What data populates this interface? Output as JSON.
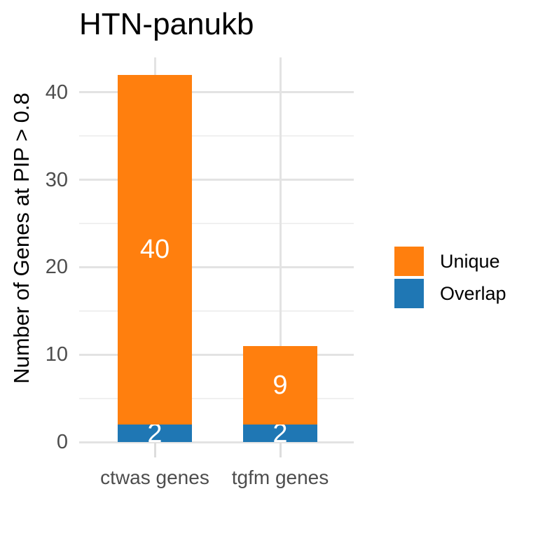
{
  "title": "HTN-panukb",
  "y_axis": {
    "label": "Number of Genes at PIP > 0.8",
    "tick_labels": [
      "0",
      "10",
      "20",
      "30",
      "40"
    ]
  },
  "x_axis": {
    "tick_labels": [
      "ctwas genes",
      "tgfm genes"
    ]
  },
  "legend": {
    "items": [
      {
        "label": "Unique",
        "color": "#ff7f0e"
      },
      {
        "label": "Overlap",
        "color": "#1f77b4"
      }
    ]
  },
  "chart_data": {
    "type": "bar",
    "stacked": true,
    "title": "HTN-panukb",
    "xlabel": "",
    "ylabel": "Number of Genes at PIP > 0.8",
    "categories": [
      "ctwas genes",
      "tgfm genes"
    ],
    "series": [
      {
        "name": "Overlap",
        "color": "#1f77b4",
        "values": [
          2,
          2
        ]
      },
      {
        "name": "Unique",
        "color": "#ff7f0e",
        "values": [
          40,
          9
        ]
      }
    ],
    "totals": [
      42,
      11
    ],
    "bar_label_color": "#ffffff",
    "ylim": [
      0,
      44
    ],
    "yticks": [
      0,
      10,
      20,
      30,
      40
    ],
    "yticks_minor": [
      5,
      15,
      25,
      35
    ],
    "grid": true,
    "legend_position": "right",
    "background": "#ffffff"
  }
}
